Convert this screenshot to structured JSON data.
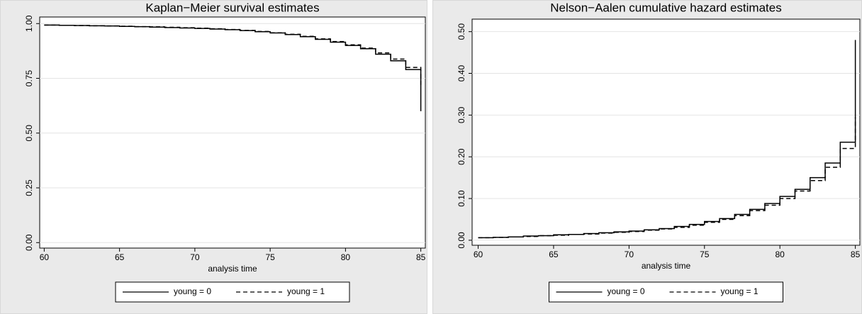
{
  "chart_data": [
    {
      "type": "step",
      "title": "Kaplan−Meier survival estimates",
      "x_label": "analysis time",
      "x": [
        60,
        61,
        62,
        63,
        64,
        65,
        66,
        67,
        68,
        69,
        70,
        71,
        72,
        73,
        74,
        75,
        76,
        77,
        78,
        79,
        80,
        81,
        82,
        83,
        84,
        85,
        85
      ],
      "series": [
        {
          "name": "young = 0",
          "color": "#000000",
          "dash": "solid",
          "values": [
            0.993,
            0.992,
            0.991,
            0.99,
            0.989,
            0.987,
            0.986,
            0.984,
            0.982,
            0.98,
            0.978,
            0.975,
            0.972,
            0.968,
            0.963,
            0.957,
            0.95,
            0.94,
            0.928,
            0.915,
            0.9,
            0.885,
            0.86,
            0.83,
            0.79,
            0.725,
            0.6
          ]
        },
        {
          "name": "young = 1",
          "color": "#000000",
          "dash": "dashed",
          "values": [
            0.993,
            0.992,
            0.991,
            0.99,
            0.989,
            0.988,
            0.986,
            0.985,
            0.983,
            0.981,
            0.979,
            0.976,
            0.973,
            0.969,
            0.964,
            0.958,
            0.951,
            0.942,
            0.93,
            0.918,
            0.903,
            0.888,
            0.866,
            0.838,
            0.8,
            0.74,
            0.72
          ]
        }
      ],
      "xlim": [
        59.7,
        85.3
      ],
      "ylim": [
        -0.025,
        1.03
      ],
      "xticks": [
        60,
        65,
        70,
        75,
        80,
        85
      ],
      "yticks": [
        {
          "value": 0,
          "label": "0.00"
        },
        {
          "value": 0.25,
          "label": "0.25"
        },
        {
          "value": 0.5,
          "label": "0.50"
        },
        {
          "value": 0.75,
          "label": "0.75"
        },
        {
          "value": 1,
          "label": "1.00"
        }
      ],
      "grid": true,
      "legend": "bottom"
    },
    {
      "type": "step",
      "title": "Nelson−Aalen cumulative hazard estimates",
      "x_label": "analysis time",
      "x": [
        60,
        61,
        62,
        63,
        64,
        65,
        66,
        67,
        68,
        69,
        70,
        71,
        72,
        73,
        74,
        75,
        76,
        77,
        78,
        79,
        80,
        81,
        82,
        83,
        84,
        85,
        85
      ],
      "series": [
        {
          "name": "young = 0",
          "color": "#000000",
          "dash": "solid",
          "values": [
            0.006,
            0.007,
            0.008,
            0.01,
            0.011,
            0.013,
            0.014,
            0.016,
            0.018,
            0.02,
            0.022,
            0.025,
            0.028,
            0.033,
            0.038,
            0.045,
            0.052,
            0.062,
            0.074,
            0.088,
            0.105,
            0.122,
            0.15,
            0.185,
            0.235,
            0.32,
            0.48
          ]
        },
        {
          "name": "young = 1",
          "color": "#000000",
          "dash": "dashed",
          "values": [
            0.006,
            0.007,
            0.008,
            0.009,
            0.011,
            0.012,
            0.014,
            0.015,
            0.017,
            0.019,
            0.021,
            0.024,
            0.027,
            0.031,
            0.036,
            0.043,
            0.05,
            0.059,
            0.071,
            0.084,
            0.1,
            0.118,
            0.143,
            0.175,
            0.22,
            0.295,
            0.295
          ]
        }
      ],
      "xlim": [
        59.6,
        85.3
      ],
      "ylim": [
        -0.012,
        0.53
      ],
      "xticks": [
        60,
        65,
        70,
        75,
        80,
        85
      ],
      "yticks": [
        {
          "value": 0,
          "label": "0.00"
        },
        {
          "value": 0.1,
          "label": "0.10"
        },
        {
          "value": 0.2,
          "label": "0.20"
        },
        {
          "value": 0.3,
          "label": "0.30"
        },
        {
          "value": 0.4,
          "label": "0.40"
        },
        {
          "value": 0.5,
          "label": "0.50"
        }
      ],
      "grid": true,
      "legend": "bottom"
    }
  ]
}
